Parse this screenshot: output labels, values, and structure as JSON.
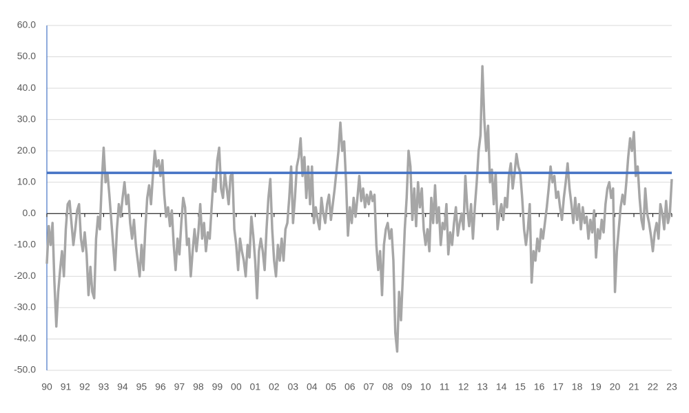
{
  "chart_data": {
    "type": "line",
    "xlim": [
      1990,
      2023
    ],
    "ylim": [
      -50,
      60
    ],
    "yticks": [
      {
        "value": -50,
        "label": "-50.0"
      },
      {
        "value": -40,
        "label": "-40.0"
      },
      {
        "value": -30,
        "label": "-30.0"
      },
      {
        "value": -20,
        "label": "-20.0"
      },
      {
        "value": -10,
        "label": "-10.0"
      },
      {
        "value": 0,
        "label": "0.0"
      },
      {
        "value": 10,
        "label": "10.0"
      },
      {
        "value": 20,
        "label": "20.0"
      },
      {
        "value": 30,
        "label": "30.0"
      },
      {
        "value": 40,
        "label": "40.0"
      },
      {
        "value": 50,
        "label": "50.0"
      },
      {
        "value": 60,
        "label": "60.0"
      }
    ],
    "xticks": [
      {
        "value": 1990,
        "label": "90"
      },
      {
        "value": 1991,
        "label": "91"
      },
      {
        "value": 1992,
        "label": "92"
      },
      {
        "value": 1993,
        "label": "93"
      },
      {
        "value": 1994,
        "label": "94"
      },
      {
        "value": 1995,
        "label": "95"
      },
      {
        "value": 1996,
        "label": "96"
      },
      {
        "value": 1997,
        "label": "97"
      },
      {
        "value": 1998,
        "label": "98"
      },
      {
        "value": 1999,
        "label": "99"
      },
      {
        "value": 2000,
        "label": "00"
      },
      {
        "value": 2001,
        "label": "01"
      },
      {
        "value": 2002,
        "label": "02"
      },
      {
        "value": 2003,
        "label": "03"
      },
      {
        "value": 2004,
        "label": "04"
      },
      {
        "value": 2005,
        "label": "05"
      },
      {
        "value": 2006,
        "label": "06"
      },
      {
        "value": 2007,
        "label": "07"
      },
      {
        "value": 2008,
        "label": "08"
      },
      {
        "value": 2009,
        "label": "09"
      },
      {
        "value": 2010,
        "label": "10"
      },
      {
        "value": 2011,
        "label": "11"
      },
      {
        "value": 2012,
        "label": "12"
      },
      {
        "value": 2013,
        "label": "13"
      },
      {
        "value": 2014,
        "label": "14"
      },
      {
        "value": 2015,
        "label": "15"
      },
      {
        "value": 2016,
        "label": "16"
      },
      {
        "value": 2017,
        "label": "17"
      },
      {
        "value": 2018,
        "label": "18"
      },
      {
        "value": 2019,
        "label": "19"
      },
      {
        "value": 2020,
        "label": "20"
      },
      {
        "value": 2021,
        "label": "21"
      },
      {
        "value": 2022,
        "label": "22"
      },
      {
        "value": 2023,
        "label": "23"
      }
    ],
    "grid": true,
    "reference_line": {
      "value": 13,
      "color": "#4472c4"
    },
    "x": [
      1990.0,
      1990.1,
      1990.2,
      1990.3,
      1990.4,
      1990.5,
      1990.6,
      1990.7,
      1990.8,
      1990.9,
      1991.0,
      1991.1,
      1991.2,
      1991.3,
      1991.4,
      1991.5,
      1991.6,
      1991.7,
      1991.8,
      1991.9,
      1992.0,
      1992.1,
      1992.2,
      1992.3,
      1992.4,
      1992.5,
      1992.6,
      1992.7,
      1992.8,
      1992.9,
      1993.0,
      1993.1,
      1993.2,
      1993.3,
      1993.4,
      1993.5,
      1993.6,
      1993.7,
      1993.8,
      1993.9,
      1994.0,
      1994.1,
      1994.2,
      1994.3,
      1994.4,
      1994.5,
      1994.6,
      1994.7,
      1994.8,
      1994.9,
      1995.0,
      1995.1,
      1995.2,
      1995.3,
      1995.4,
      1995.5,
      1995.6,
      1995.7,
      1995.8,
      1995.9,
      1996.0,
      1996.1,
      1996.2,
      1996.3,
      1996.4,
      1996.5,
      1996.6,
      1996.7,
      1996.8,
      1996.9,
      1997.0,
      1997.1,
      1997.2,
      1997.3,
      1997.4,
      1997.5,
      1997.6,
      1997.7,
      1997.8,
      1997.9,
      1998.0,
      1998.1,
      1998.2,
      1998.3,
      1998.4,
      1998.5,
      1998.6,
      1998.7,
      1998.8,
      1998.9,
      1999.0,
      1999.1,
      1999.2,
      1999.3,
      1999.4,
      1999.5,
      1999.6,
      1999.7,
      1999.8,
      1999.9,
      2000.0,
      2000.1,
      2000.2,
      2000.3,
      2000.4,
      2000.5,
      2000.6,
      2000.7,
      2000.8,
      2000.9,
      2001.0,
      2001.1,
      2001.2,
      2001.3,
      2001.4,
      2001.5,
      2001.6,
      2001.7,
      2001.8,
      2001.9,
      2002.0,
      2002.1,
      2002.2,
      2002.3,
      2002.4,
      2002.5,
      2002.6,
      2002.7,
      2002.8,
      2002.9,
      2003.0,
      2003.1,
      2003.2,
      2003.3,
      2003.4,
      2003.5,
      2003.6,
      2003.7,
      2003.8,
      2003.9,
      2004.0,
      2004.1,
      2004.2,
      2004.3,
      2004.4,
      2004.5,
      2004.6,
      2004.7,
      2004.8,
      2004.9,
      2005.0,
      2005.1,
      2005.2,
      2005.3,
      2005.4,
      2005.5,
      2005.6,
      2005.7,
      2005.8,
      2005.9,
      2006.0,
      2006.1,
      2006.2,
      2006.3,
      2006.4,
      2006.5,
      2006.6,
      2006.7,
      2006.8,
      2006.9,
      2007.0,
      2007.1,
      2007.2,
      2007.3,
      2007.4,
      2007.5,
      2007.6,
      2007.7,
      2007.8,
      2007.9,
      2008.0,
      2008.1,
      2008.2,
      2008.3,
      2008.4,
      2008.5,
      2008.6,
      2008.7,
      2008.8,
      2008.9,
      2009.0,
      2009.1,
      2009.2,
      2009.3,
      2009.4,
      2009.5,
      2009.6,
      2009.7,
      2009.8,
      2009.9,
      2010.0,
      2010.1,
      2010.2,
      2010.3,
      2010.4,
      2010.5,
      2010.6,
      2010.7,
      2010.8,
      2010.9,
      2011.0,
      2011.1,
      2011.2,
      2011.3,
      2011.4,
      2011.5,
      2011.6,
      2011.7,
      2011.8,
      2011.9,
      2012.0,
      2012.1,
      2012.2,
      2012.3,
      2012.4,
      2012.5,
      2012.6,
      2012.7,
      2012.8,
      2012.9,
      2013.0,
      2013.1,
      2013.2,
      2013.3,
      2013.4,
      2013.5,
      2013.6,
      2013.7,
      2013.8,
      2013.9,
      2014.0,
      2014.1,
      2014.2,
      2014.3,
      2014.4,
      2014.5,
      2014.6,
      2014.7,
      2014.8,
      2014.9,
      2015.0,
      2015.1,
      2015.2,
      2015.3,
      2015.4,
      2015.5,
      2015.6,
      2015.7,
      2015.8,
      2015.9,
      2016.0,
      2016.1,
      2016.2,
      2016.3,
      2016.4,
      2016.5,
      2016.6,
      2016.7,
      2016.8,
      2016.9,
      2017.0,
      2017.1,
      2017.2,
      2017.3,
      2017.4,
      2017.5,
      2017.6,
      2017.7,
      2017.8,
      2017.9,
      2018.0,
      2018.1,
      2018.2,
      2018.3,
      2018.4,
      2018.5,
      2018.6,
      2018.7,
      2018.8,
      2018.9,
      2019.0,
      2019.1,
      2019.2,
      2019.3,
      2019.4,
      2019.5,
      2019.6,
      2019.7,
      2019.8,
      2019.9,
      2020.0,
      2020.1,
      2020.2,
      2020.3,
      2020.4,
      2020.5,
      2020.6,
      2020.7,
      2020.8,
      2020.9,
      2021.0,
      2021.1,
      2021.2,
      2021.3,
      2021.4,
      2021.5,
      2021.6,
      2021.7,
      2021.8,
      2021.9,
      2022.0,
      2022.1,
      2022.2,
      2022.3,
      2022.4,
      2022.5,
      2022.6,
      2022.7,
      2022.8,
      2022.9,
      2023.0
    ],
    "series": [
      {
        "color": "#a6a6a6",
        "values": [
          -16,
          -4,
          -10,
          -3,
          -22,
          -36,
          -25,
          -18,
          -12,
          -20,
          -5,
          3,
          4,
          -3,
          -10,
          -5,
          1,
          3,
          -8,
          -12,
          -6,
          -13,
          -26,
          -17,
          -25,
          -27,
          -8,
          -1,
          -5,
          10,
          21,
          10,
          13,
          6,
          -2,
          -10,
          -18,
          -5,
          3,
          -1,
          5,
          10,
          3,
          6,
          -3,
          -8,
          -2,
          -10,
          -15,
          -20,
          -10,
          -18,
          -5,
          5,
          9,
          3,
          12,
          20,
          15,
          17,
          12,
          17,
          6,
          -1,
          2,
          -4,
          1,
          -10,
          -18,
          -8,
          -13,
          -3,
          5,
          2,
          -10,
          -8,
          -20,
          -12,
          -5,
          -12,
          -6,
          3,
          -8,
          -3,
          -12,
          -6,
          -8,
          2,
          11,
          7,
          17,
          21,
          8,
          5,
          13,
          8,
          3,
          12,
          13,
          -5,
          -10,
          -18,
          -8,
          -12,
          -15,
          -20,
          -10,
          -14,
          -1,
          -7,
          -15,
          -27,
          -12,
          -8,
          -12,
          -18,
          -5,
          5,
          11,
          -5,
          -15,
          -20,
          -10,
          -15,
          -8,
          -15,
          -5,
          -3,
          5,
          15,
          -3,
          5,
          15,
          18,
          24,
          12,
          18,
          5,
          15,
          3,
          15,
          -3,
          2,
          -2,
          -5,
          5,
          0,
          -3,
          3,
          6,
          -2,
          3,
          8,
          14,
          20,
          29,
          20,
          23,
          10,
          -7,
          2,
          -3,
          5,
          -1,
          5,
          12,
          4,
          8,
          2,
          6,
          3,
          7,
          4,
          6,
          -10,
          -18,
          -12,
          -26,
          -10,
          -5,
          -3,
          -8,
          -5,
          -15,
          -38,
          -44,
          -25,
          -34,
          -20,
          -5,
          5,
          20,
          15,
          -2,
          8,
          -4,
          10,
          2,
          8,
          -5,
          -10,
          -5,
          -12,
          5,
          -3,
          9,
          -3,
          2,
          -10,
          -3,
          -5,
          3,
          -13,
          -6,
          -10,
          -3,
          2,
          -7,
          -3,
          0,
          -5,
          12,
          2,
          -4,
          3,
          -8,
          2,
          10,
          20,
          25,
          47,
          30,
          20,
          28,
          10,
          14,
          3,
          13,
          -5,
          0,
          3,
          -2,
          5,
          2,
          12,
          16,
          8,
          13,
          19,
          15,
          13,
          5,
          -5,
          -10,
          -5,
          3,
          -22,
          -12,
          -15,
          -8,
          -12,
          -5,
          -8,
          -3,
          2,
          8,
          15,
          10,
          12,
          5,
          7,
          2,
          -2,
          5,
          10,
          16,
          8,
          3,
          -3,
          5,
          -2,
          3,
          -5,
          2,
          -3,
          -1,
          -8,
          -2,
          -6,
          1,
          -14,
          -5,
          -8,
          -2,
          -6,
          3,
          8,
          10,
          5,
          8,
          -25,
          -12,
          -5,
          2,
          6,
          3,
          10,
          18,
          24,
          20,
          26,
          12,
          15,
          5,
          -2,
          -5,
          8,
          0,
          -3,
          -7,
          -12,
          -6,
          -3,
          -8,
          3,
          0,
          -5,
          4,
          -3,
          0,
          11
        ]
      }
    ]
  }
}
